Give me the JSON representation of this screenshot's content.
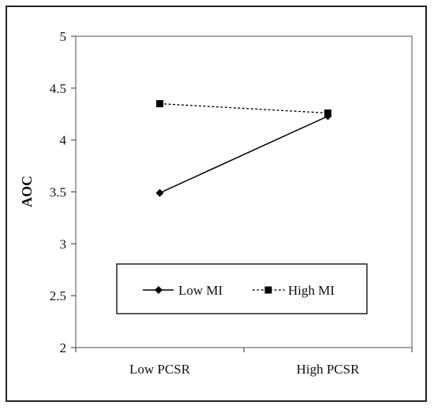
{
  "chart_data": {
    "type": "line",
    "title": "",
    "xlabel": "",
    "ylabel": "AOC",
    "categories": [
      "Low PCSR",
      "High PCSR"
    ],
    "ylim": [
      2,
      5
    ],
    "yticks": [
      "2",
      "2.5",
      "3",
      "3.5",
      "4",
      "4.5",
      "5"
    ],
    "grid": false,
    "legend_position": "bottom-center",
    "series": [
      {
        "name": "Low MI",
        "values": [
          3.49,
          4.23
        ],
        "marker": "diamond",
        "line": "solid",
        "color": "#000000"
      },
      {
        "name": "High MI",
        "values": [
          4.35,
          4.26
        ],
        "marker": "square",
        "line": "dashed",
        "color": "#000000"
      }
    ]
  }
}
